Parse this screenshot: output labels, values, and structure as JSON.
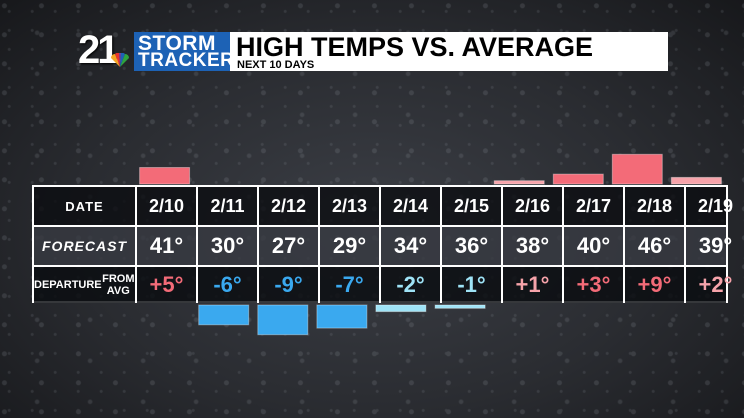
{
  "header": {
    "logo_number": "21",
    "logo_storm": "STORM",
    "logo_tracker": "TRACKER",
    "title": "HIGH TEMPS VS. AVERAGE",
    "subtitle": "NEXT 10 DAYS"
  },
  "table": {
    "date_label": "DATE",
    "forecast_label": "FORECAST",
    "departure_label_line1": "DEPARTURE",
    "departure_label_line2": "FROM AVG",
    "dates": [
      "2/10",
      "2/11",
      "2/12",
      "2/13",
      "2/14",
      "2/15",
      "2/16",
      "2/17",
      "2/18",
      "2/19"
    ],
    "forecast": [
      "41°",
      "30°",
      "27°",
      "29°",
      "34°",
      "36°",
      "38°",
      "40°",
      "46°",
      "39°"
    ],
    "departure": [
      "+5°",
      "-6°",
      "-9°",
      "-7°",
      "-2°",
      "-1°",
      "+1°",
      "+3°",
      "+9°",
      "+2°"
    ]
  },
  "chart_data": {
    "type": "bar",
    "categories": [
      "2/10",
      "2/11",
      "2/12",
      "2/13",
      "2/14",
      "2/15",
      "2/16",
      "2/17",
      "2/18",
      "2/19"
    ],
    "values": [
      5,
      -6,
      -9,
      -7,
      -2,
      -1,
      1,
      3,
      9,
      2
    ],
    "forecast_highs": [
      41,
      30,
      27,
      29,
      34,
      36,
      38,
      40,
      46,
      39
    ],
    "title": "HIGH TEMPS VS. AVERAGE",
    "subtitle": "NEXT 10 DAYS",
    "colors": {
      "positive_strong": "#f36b78",
      "positive_light": "#f6a3aa",
      "negative_strong": "#3aa9ef",
      "negative_light": "#9fe3f6"
    }
  }
}
